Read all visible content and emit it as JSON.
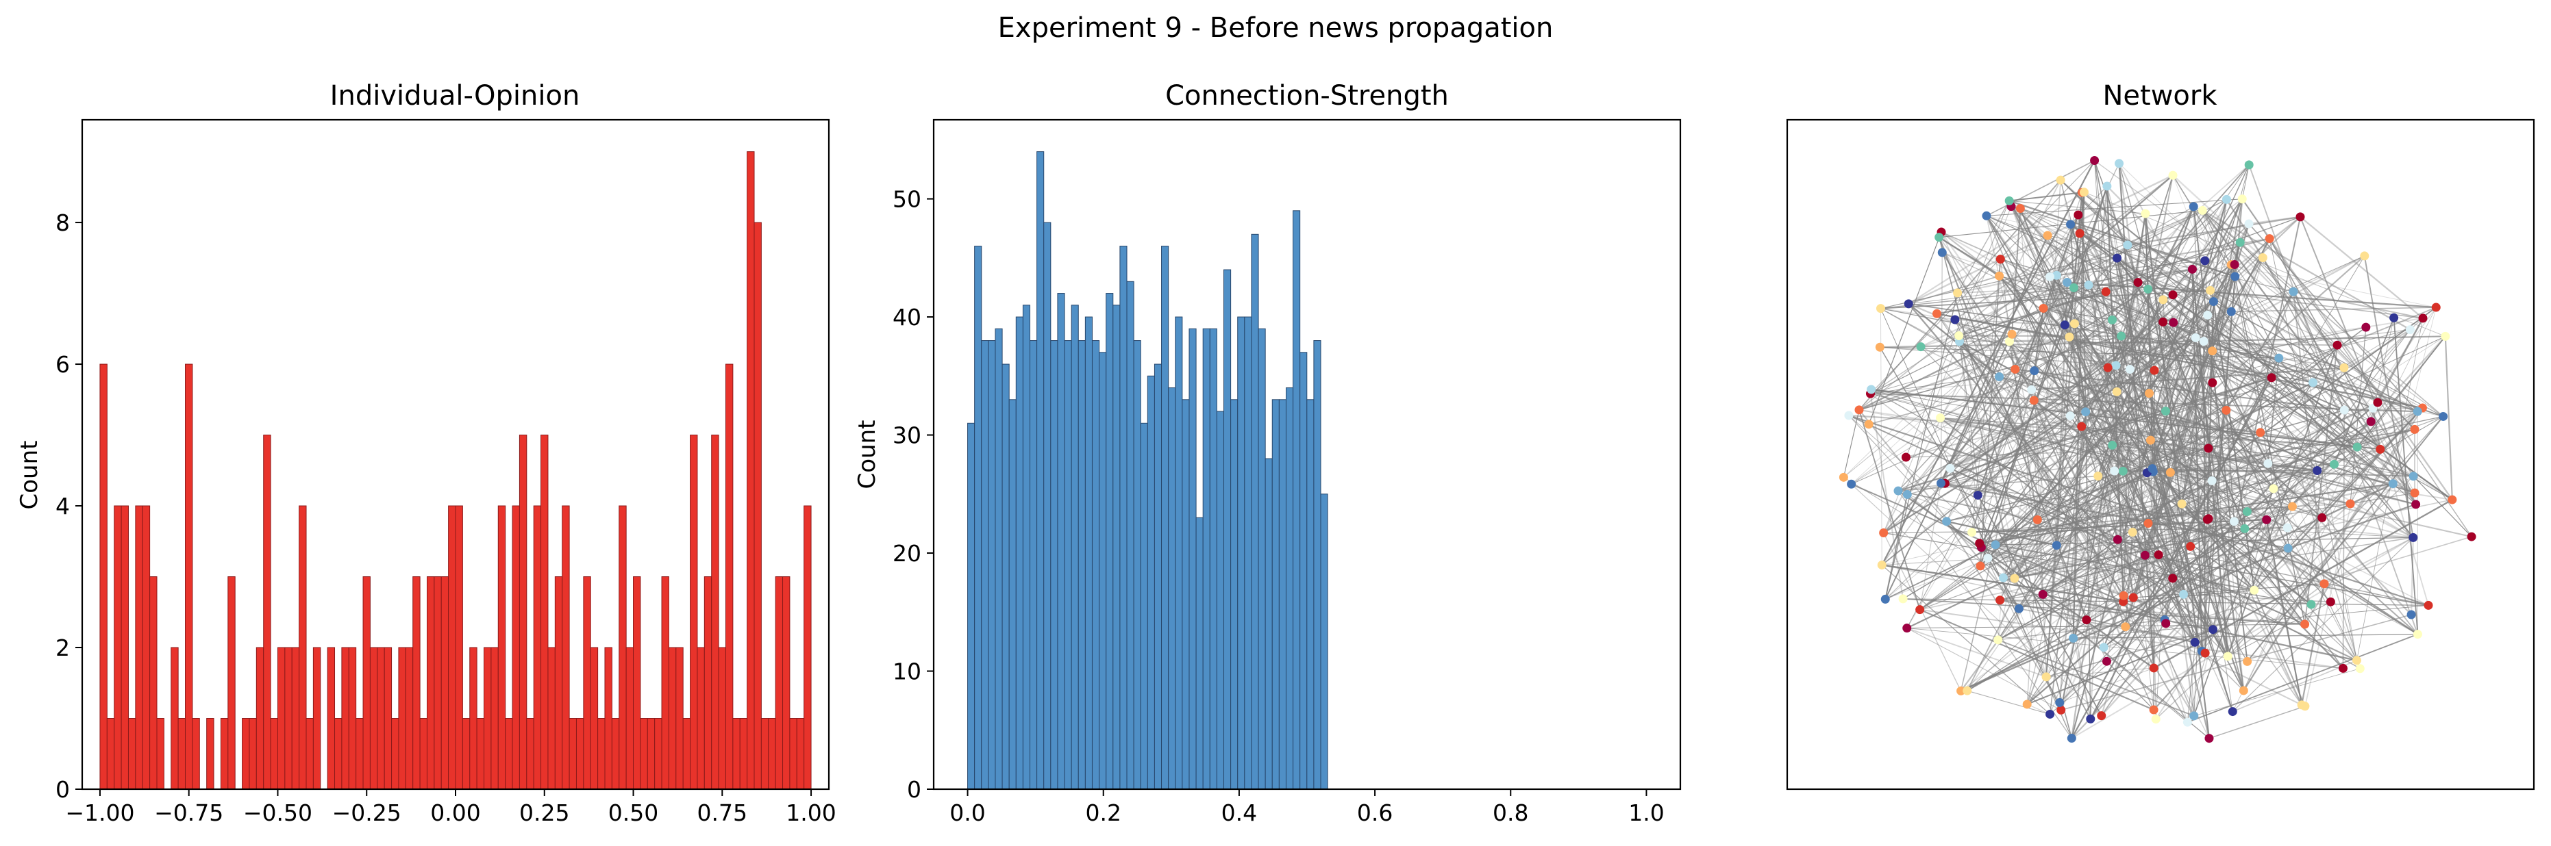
{
  "figure": {
    "suptitle": "Experiment 9 - Before news propagation"
  },
  "chart_data": [
    {
      "type": "bar",
      "title": "Individual-Opinion",
      "xlabel": "",
      "ylabel": "Count",
      "bar_color": "#e8332b",
      "edge_color": "#8b1a1a",
      "xlim": [
        -1.05,
        1.05
      ],
      "ylim": [
        0,
        9.45
      ],
      "xticks": [
        -1.0,
        -0.75,
        -0.5,
        -0.25,
        0.0,
        0.25,
        0.5,
        0.75,
        1.0
      ],
      "xtick_labels": [
        "−1.00",
        "−0.75",
        "−0.50",
        "−0.25",
        "0.00",
        "0.25",
        "0.50",
        "0.75",
        "1.00"
      ],
      "yticks": [
        0,
        2,
        4,
        6,
        8
      ],
      "ytick_labels": [
        "0",
        "2",
        "4",
        "6",
        "8"
      ],
      "bin_start": -1.0,
      "bin_width": 0.02,
      "values": [
        6,
        1,
        4,
        4,
        1,
        4,
        4,
        3,
        1,
        0,
        2,
        1,
        6,
        1,
        0,
        1,
        0,
        1,
        3,
        0,
        1,
        1,
        2,
        5,
        1,
        2,
        2,
        2,
        4,
        1,
        2,
        0,
        2,
        1,
        2,
        2,
        1,
        3,
        2,
        2,
        2,
        1,
        2,
        2,
        3,
        1,
        3,
        3,
        3,
        4,
        4,
        1,
        2,
        1,
        2,
        2,
        4,
        1,
        4,
        5,
        1,
        4,
        5,
        2,
        3,
        4,
        1,
        1,
        3,
        2,
        1,
        2,
        1,
        4,
        2,
        3,
        1,
        1,
        1,
        3,
        2,
        2,
        1,
        5,
        2,
        3,
        5,
        2,
        6,
        1,
        1,
        9,
        8,
        1,
        1,
        3,
        3,
        1,
        1,
        4
      ]
    },
    {
      "type": "bar",
      "title": "Connection-Strength",
      "xlabel": "",
      "ylabel": "Count",
      "bar_color": "#4f8fc6",
      "edge_color": "#27466b",
      "xlim": [
        -0.05,
        1.05
      ],
      "ylim": [
        0,
        56.7
      ],
      "xticks": [
        0.0,
        0.2,
        0.4,
        0.6,
        0.8,
        1.0
      ],
      "xtick_labels": [
        "0.0",
        "0.2",
        "0.4",
        "0.6",
        "0.8",
        "1.0"
      ],
      "yticks": [
        0,
        10,
        20,
        30,
        40,
        50
      ],
      "ytick_labels": [
        "0",
        "10",
        "20",
        "30",
        "40",
        "50"
      ],
      "bin_start": 0.0,
      "bin_width": 0.0102,
      "values": [
        31,
        46,
        38,
        38,
        39,
        36,
        33,
        40,
        41,
        38,
        54,
        48,
        38,
        42,
        38,
        41,
        38,
        40,
        38,
        37,
        42,
        41,
        46,
        43,
        38,
        31,
        35,
        36,
        46,
        34,
        40,
        33,
        39,
        23,
        39,
        39,
        32,
        44,
        33,
        40,
        40,
        47,
        39,
        28,
        33,
        33,
        34,
        49,
        37,
        33,
        38,
        25
      ]
    },
    {
      "type": "network",
      "title": "Network",
      "node_colors": [
        "#a50026",
        "#d73027",
        "#f46d43",
        "#fdae61",
        "#fee090",
        "#ffffbf",
        "#e0f3f8",
        "#abd9e9",
        "#74add1",
        "#4575b4",
        "#313695",
        "#9e0142",
        "#66c2a5"
      ],
      "edge_color": "#808080"
    }
  ]
}
